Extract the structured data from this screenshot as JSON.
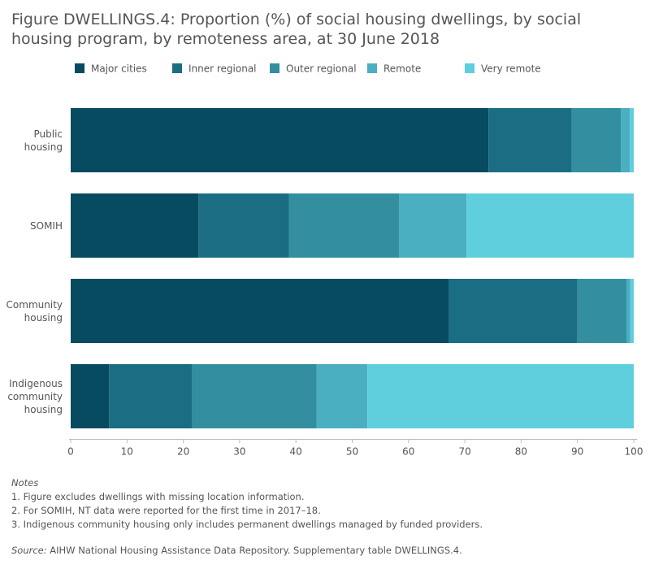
{
  "chart_data": {
    "type": "stacked-bar-horizontal",
    "title": "Figure DWELLINGS.4: Proportion (%) of social housing dwellings, by social housing program, by remoteness area, at 30 June 2018",
    "categories": [
      "Public housing",
      "SOMIH",
      "Community housing",
      "Indigenous community housing"
    ],
    "series": [
      {
        "name": "Major cities",
        "color": "#064b5f",
        "values": [
          74.2,
          22.7,
          67.2,
          6.8
        ]
      },
      {
        "name": "Inner regional",
        "color": "#1b6d83",
        "values": [
          14.8,
          16.1,
          22.8,
          14.7
        ]
      },
      {
        "name": "Outer regional",
        "color": "#338fa0",
        "values": [
          8.7,
          19.5,
          8.7,
          22.2
        ]
      },
      {
        "name": "Remote",
        "color": "#4aafc1",
        "values": [
          1.6,
          12.0,
          0.7,
          9.0
        ]
      },
      {
        "name": "Very remote",
        "color": "#5fcfde",
        "values": [
          0.7,
          29.7,
          0.6,
          47.3
        ]
      }
    ],
    "xlim": [
      0,
      100
    ],
    "xticks": [
      0,
      10,
      20,
      30,
      40,
      50,
      60,
      70,
      80,
      90,
      100
    ],
    "grid": false
  },
  "notes": {
    "title": "Notes",
    "items": [
      "1. Figure excludes dwellings with missing location information.",
      "2. For SOMIH, NT data were reported for the first time in 2017–18.",
      "3. Indigenous community housing only includes permanent dwellings managed by funded providers."
    ]
  },
  "source": {
    "label": "Source:",
    "text": "AIHW National Housing Assistance Data Repository. Supplementary table DWELLINGS.4."
  }
}
